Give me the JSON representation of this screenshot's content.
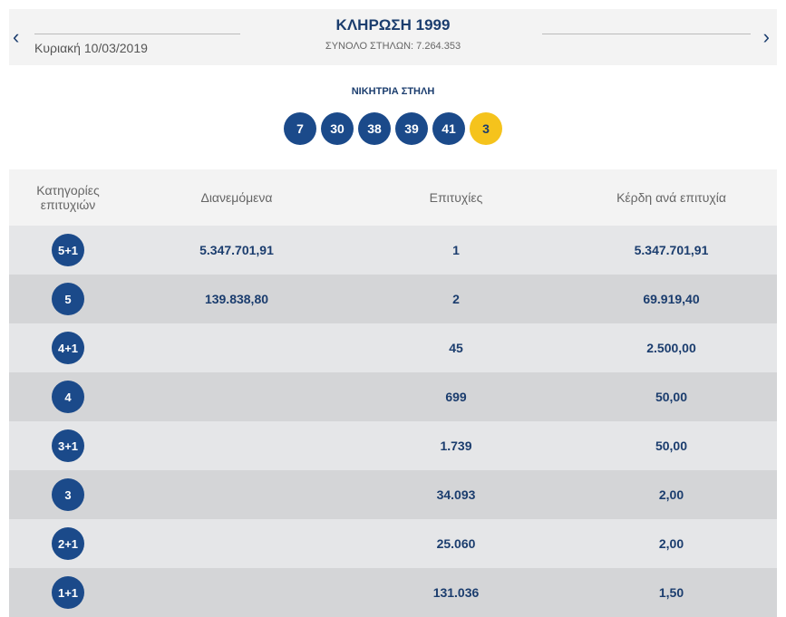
{
  "header": {
    "title": "ΚΛΗΡΩΣΗ 1999",
    "date": "Κυριακή 10/03/2019",
    "total_columns": "ΣΥΝΟΛΟ ΣΤΗΛΩΝ: 7.264.353",
    "prev_icon": "chevron-left-icon",
    "next_icon": "chevron-right-icon",
    "prev": "‹",
    "next": "›"
  },
  "winning": {
    "label": "ΝΙΚΗΤΡΙΑ ΣΤΗΛΗ",
    "numbers": [
      "7",
      "30",
      "38",
      "39",
      "41"
    ],
    "bonus": "3"
  },
  "colors": {
    "blue": "#1b4a8a",
    "yellow": "#f5c31c"
  },
  "table": {
    "headers": [
      "Κατηγορίες επιτυχιών",
      "Διανεμόμενα",
      "Επιτυχίες",
      "Κέρδη ανά επιτυχία"
    ],
    "rows": [
      {
        "cat": "5+1",
        "dist": "5.347.701,91",
        "wins": "1",
        "per": "5.347.701,91"
      },
      {
        "cat": "5",
        "dist": "139.838,80",
        "wins": "2",
        "per": "69.919,40"
      },
      {
        "cat": "4+1",
        "dist": "",
        "wins": "45",
        "per": "2.500,00"
      },
      {
        "cat": "4",
        "dist": "",
        "wins": "699",
        "per": "50,00"
      },
      {
        "cat": "3+1",
        "dist": "",
        "wins": "1.739",
        "per": "50,00"
      },
      {
        "cat": "3",
        "dist": "",
        "wins": "34.093",
        "per": "2,00"
      },
      {
        "cat": "2+1",
        "dist": "",
        "wins": "25.060",
        "per": "2,00"
      },
      {
        "cat": "1+1",
        "dist": "",
        "wins": "131.036",
        "per": "1,50"
      }
    ]
  }
}
